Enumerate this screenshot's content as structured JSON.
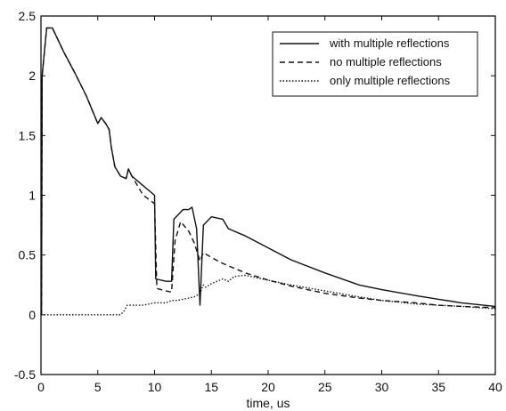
{
  "chart_data": {
    "type": "line",
    "xlabel": "time, us",
    "ylabel": "",
    "xlim": [
      0,
      40
    ],
    "ylim": [
      -0.5,
      2.5
    ],
    "xticks": [
      0,
      5,
      10,
      15,
      20,
      25,
      30,
      35,
      40
    ],
    "yticks": [
      -0.5,
      0,
      0.5,
      1,
      1.5,
      2,
      2.5
    ],
    "x_tick_labels": [
      "0",
      "5",
      "10",
      "15",
      "20",
      "25",
      "30",
      "35",
      "40"
    ],
    "y_tick_labels": [
      "-0.5",
      "0",
      "0.5",
      "1",
      "1.5",
      "2",
      "2.5"
    ],
    "grid": false,
    "legend_position": "top-right",
    "series": [
      {
        "name": "with multiple reflections",
        "style": "solid",
        "color": "#111111",
        "points": [
          [
            0.05,
            0
          ],
          [
            0.1,
            2.0
          ],
          [
            0.5,
            2.4
          ],
          [
            1,
            2.4
          ],
          [
            2,
            2.2
          ],
          [
            3,
            2.02
          ],
          [
            4,
            1.83
          ],
          [
            5,
            1.6
          ],
          [
            5.3,
            1.65
          ],
          [
            5.7,
            1.6
          ],
          [
            6,
            1.55
          ],
          [
            6.2,
            1.4
          ],
          [
            6.5,
            1.24
          ],
          [
            7,
            1.16
          ],
          [
            7.5,
            1.14
          ],
          [
            7.7,
            1.22
          ],
          [
            8,
            1.16
          ],
          [
            9,
            1.08
          ],
          [
            10,
            1.0
          ],
          [
            10.1,
            0.3
          ],
          [
            11,
            0.28
          ],
          [
            11.5,
            0.28
          ],
          [
            11.7,
            0.8
          ],
          [
            12.5,
            0.88
          ],
          [
            13,
            0.88
          ],
          [
            13.3,
            0.9
          ],
          [
            13.7,
            0.72
          ],
          [
            14,
            0.08
          ],
          [
            14.3,
            0.75
          ],
          [
            15,
            0.82
          ],
          [
            16,
            0.8
          ],
          [
            16.5,
            0.72
          ],
          [
            18,
            0.66
          ],
          [
            20,
            0.56
          ],
          [
            22,
            0.46
          ],
          [
            25,
            0.35
          ],
          [
            28,
            0.25
          ],
          [
            30,
            0.21
          ],
          [
            33,
            0.16
          ],
          [
            35,
            0.13
          ],
          [
            37,
            0.1
          ],
          [
            40,
            0.07
          ]
        ]
      },
      {
        "name": "no multiple reflections",
        "style": "dashed",
        "color": "#111111",
        "points": [
          [
            0.05,
            0
          ],
          [
            0.1,
            2.0
          ],
          [
            0.5,
            2.4
          ],
          [
            1,
            2.4
          ],
          [
            2,
            2.2
          ],
          [
            3,
            2.02
          ],
          [
            4,
            1.83
          ],
          [
            5,
            1.6
          ],
          [
            5.3,
            1.65
          ],
          [
            5.7,
            1.6
          ],
          [
            6,
            1.55
          ],
          [
            6.2,
            1.4
          ],
          [
            6.5,
            1.24
          ],
          [
            7,
            1.16
          ],
          [
            7.5,
            1.14
          ],
          [
            7.7,
            1.22
          ],
          [
            8,
            1.16
          ],
          [
            9,
            1.0
          ],
          [
            10,
            0.93
          ],
          [
            10.2,
            0.22
          ],
          [
            11,
            0.2
          ],
          [
            11.5,
            0.19
          ],
          [
            11.8,
            0.62
          ],
          [
            12.3,
            0.78
          ],
          [
            13,
            0.7
          ],
          [
            13.5,
            0.6
          ],
          [
            14,
            0.45
          ],
          [
            14.3,
            0.52
          ],
          [
            15,
            0.48
          ],
          [
            16,
            0.43
          ],
          [
            18,
            0.35
          ],
          [
            20,
            0.29
          ],
          [
            22,
            0.24
          ],
          [
            25,
            0.18
          ],
          [
            28,
            0.14
          ],
          [
            30,
            0.12
          ],
          [
            33,
            0.1
          ],
          [
            35,
            0.08
          ],
          [
            37,
            0.07
          ],
          [
            40,
            0.06
          ]
        ]
      },
      {
        "name": "only multiple reflections",
        "style": "dotted",
        "color": "#111111",
        "points": [
          [
            0,
            0
          ],
          [
            7,
            0
          ],
          [
            7.3,
            0.03
          ],
          [
            7.6,
            0.08
          ],
          [
            9,
            0.08
          ],
          [
            10,
            0.1
          ],
          [
            11,
            0.1
          ],
          [
            11.5,
            0.12
          ],
          [
            12,
            0.12
          ],
          [
            13,
            0.14
          ],
          [
            13.5,
            0.15
          ],
          [
            14,
            0.18
          ],
          [
            14.3,
            0.25
          ],
          [
            14.5,
            0.23
          ],
          [
            15,
            0.26
          ],
          [
            16,
            0.3
          ],
          [
            16.5,
            0.28
          ],
          [
            17,
            0.32
          ],
          [
            18,
            0.33
          ],
          [
            19,
            0.31
          ],
          [
            20,
            0.29
          ],
          [
            22,
            0.25
          ],
          [
            25,
            0.2
          ],
          [
            28,
            0.15
          ],
          [
            30,
            0.12
          ],
          [
            33,
            0.09
          ],
          [
            35,
            0.08
          ],
          [
            37,
            0.07
          ],
          [
            40,
            0.05
          ]
        ]
      }
    ]
  }
}
